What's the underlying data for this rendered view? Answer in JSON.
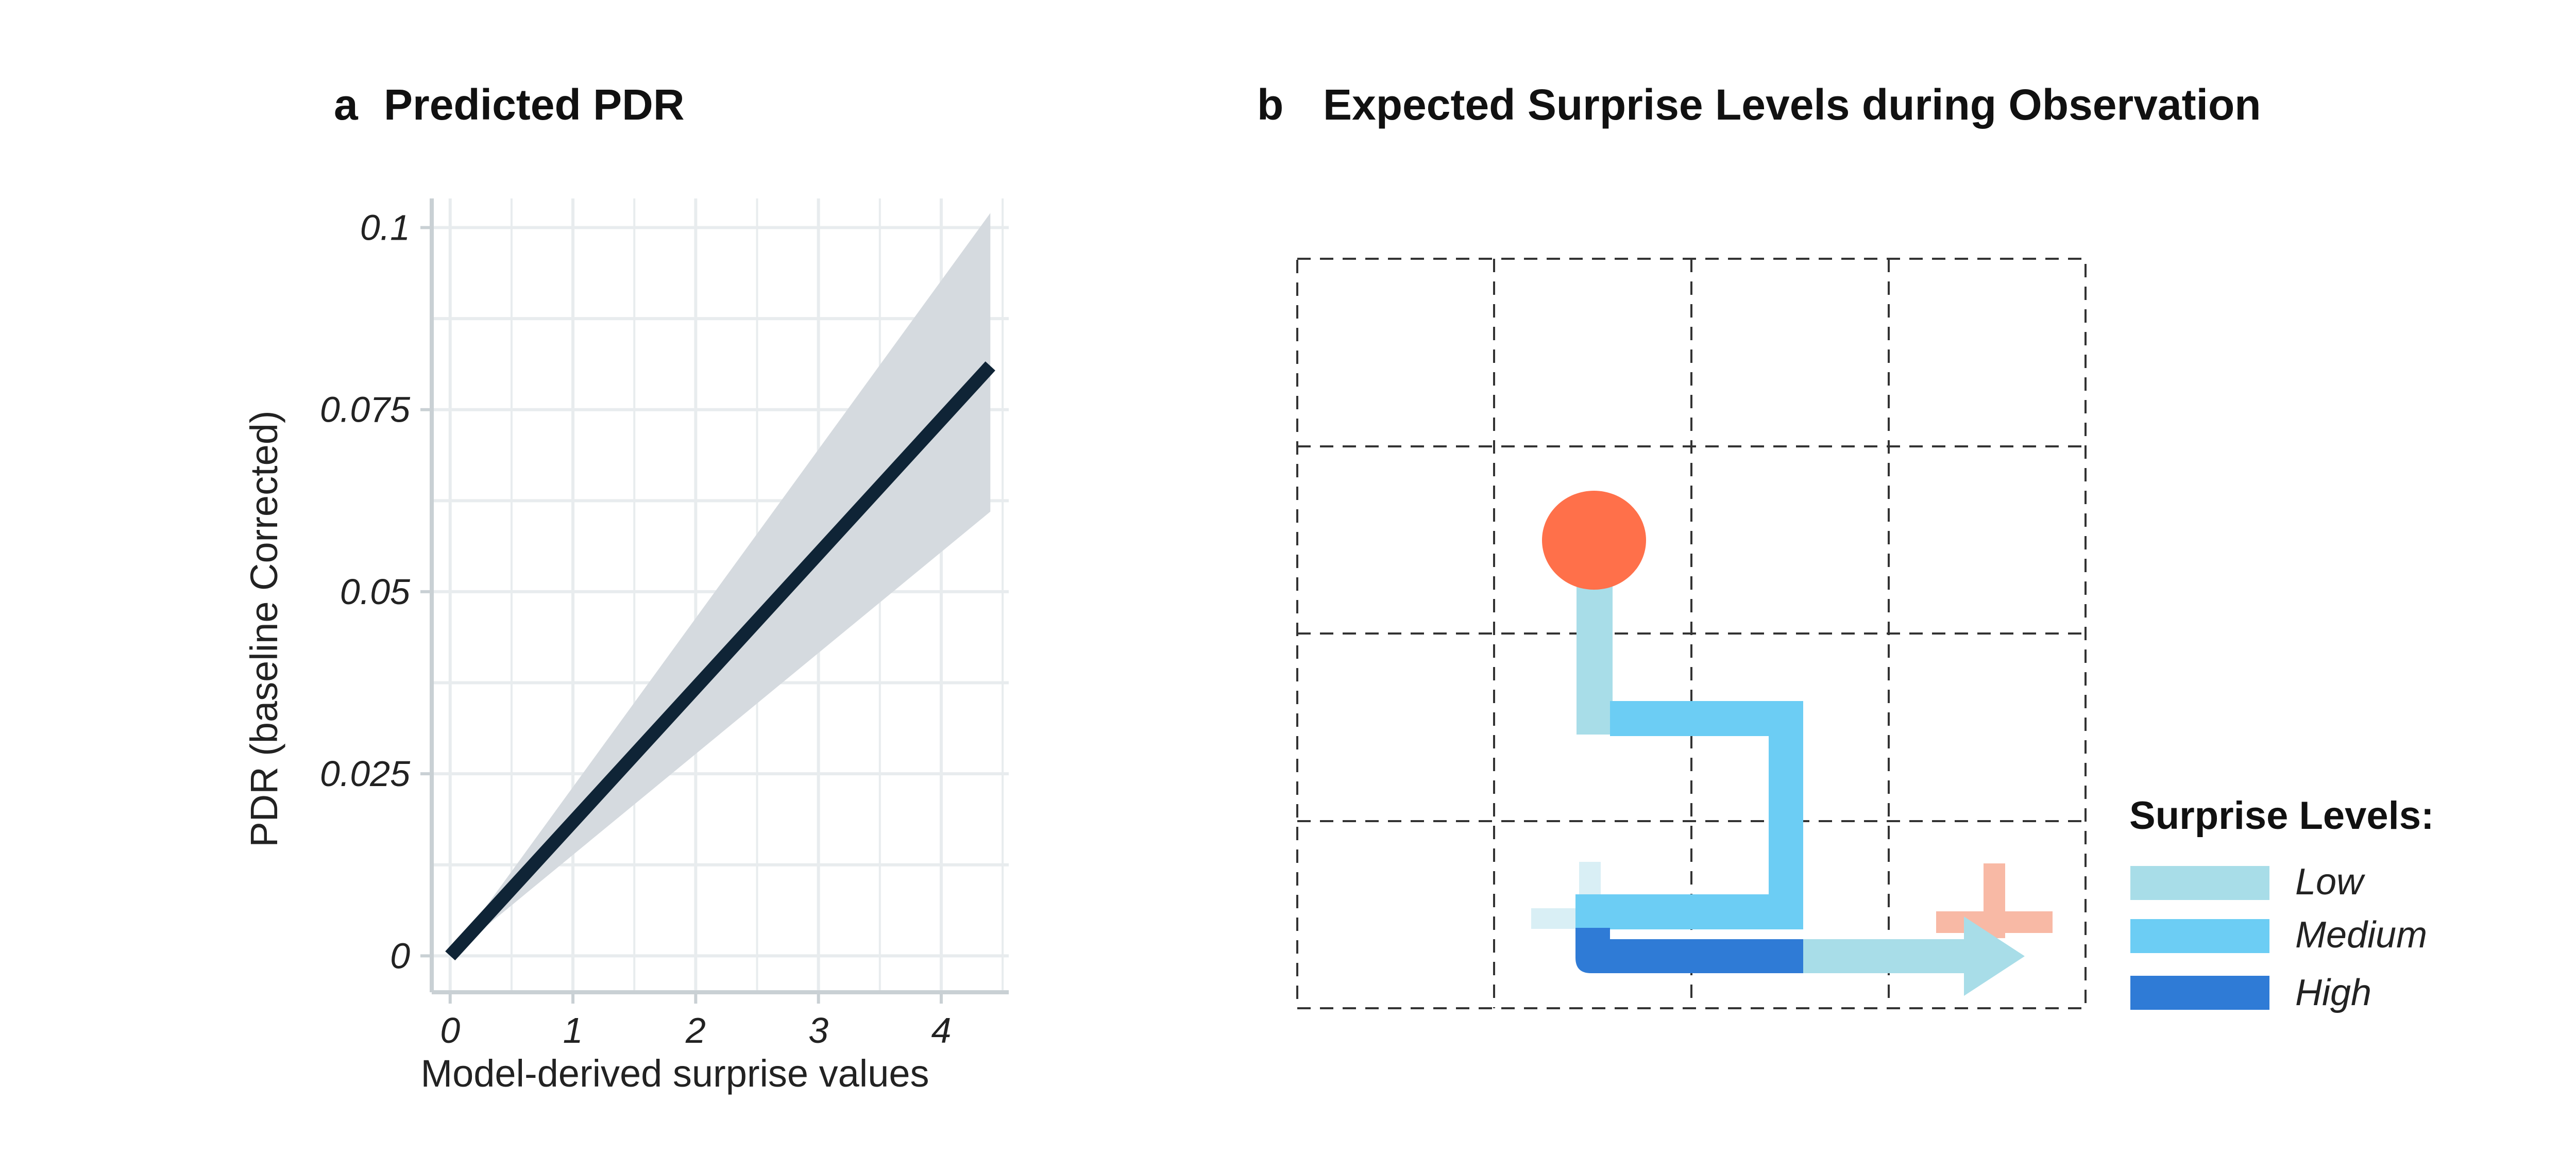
{
  "panel_a": {
    "letter": "a",
    "title": "Predicted PDR"
  },
  "panel_b": {
    "letter": "b",
    "title": "Expected Surprise Levels during Observation",
    "legend": {
      "title": "Surprise Levels:",
      "items": [
        {
          "label": "Low",
          "color": "#a8dde8"
        },
        {
          "label": "Medium",
          "color": "#6ccdf4"
        },
        {
          "label": "High",
          "color": "#2f7bd6"
        }
      ]
    },
    "colors": {
      "start_dot": "#ff704a",
      "goal_cross": "#f8b9a5",
      "grid": "#333333"
    },
    "grid": {
      "rows": 4,
      "cols": 4
    }
  },
  "chart_data": {
    "type": "line",
    "title": "Predicted PDR",
    "xlabel": "Model-derived surprise values",
    "ylabel": "PDR (baseline Corrected)",
    "xlim": [
      -0.15,
      4.55
    ],
    "ylim": [
      -0.005,
      0.104
    ],
    "x_ticks": [
      0,
      1,
      2,
      3,
      4
    ],
    "x_tick_labels": [
      "0",
      "1",
      "2",
      "3",
      "4"
    ],
    "y_ticks": [
      0,
      0.025,
      0.05,
      0.075,
      0.1
    ],
    "y_tick_labels": [
      "0",
      "0.025",
      "0.05",
      "0.075",
      "0.1"
    ],
    "grid": true,
    "series": [
      {
        "line_color": "#0f2436",
        "band_color": "#d5dadf",
        "x": [
          0,
          4.4
        ],
        "y": [
          0.0,
          0.081
        ],
        "ci_lower": [
          0.0,
          0.061
        ],
        "ci_upper": [
          0.0,
          0.102
        ]
      }
    ]
  }
}
